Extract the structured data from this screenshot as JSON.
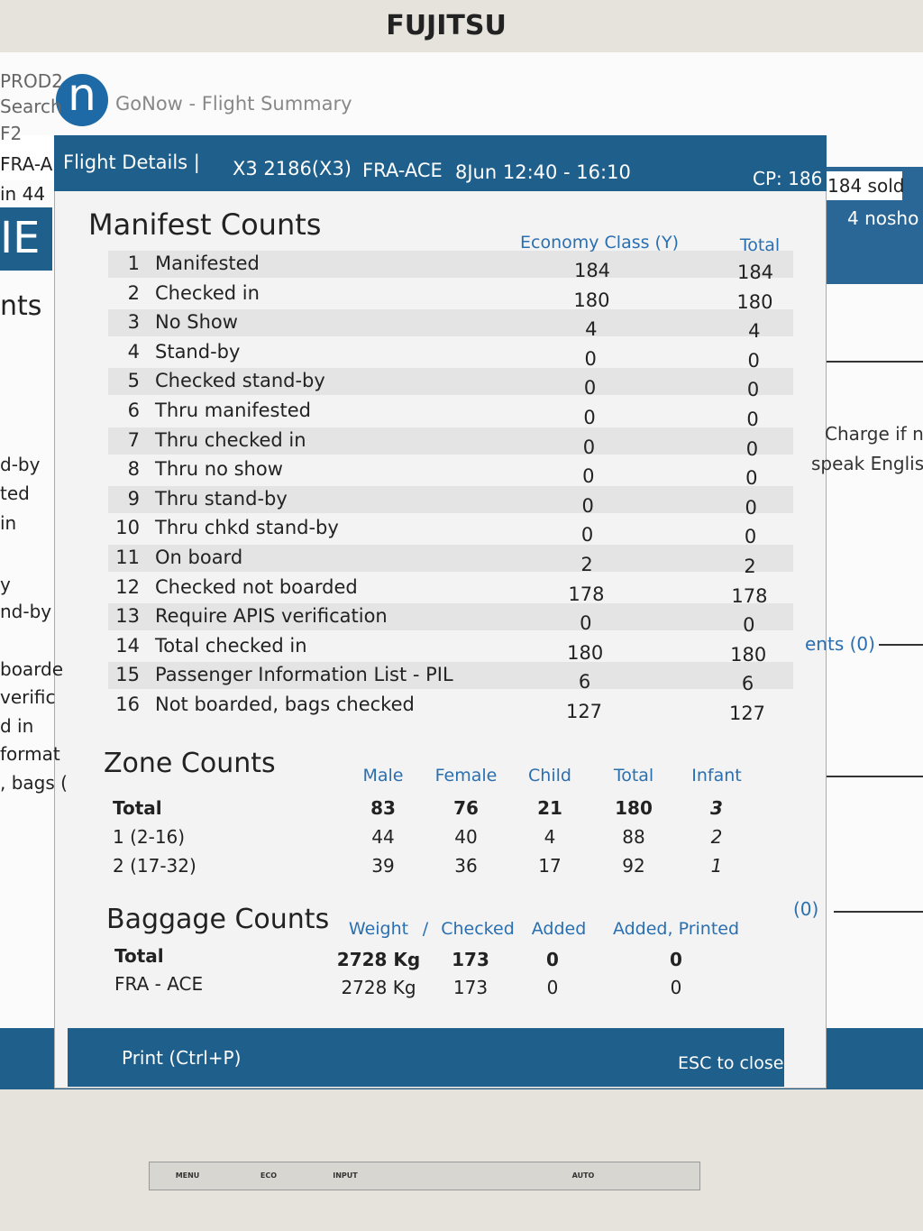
{
  "monitor": {
    "brand": "FUJITSU",
    "buttons": [
      "MENU",
      "ECO",
      "INPUT",
      "AUTO"
    ]
  },
  "background": {
    "left": [
      "PROD2",
      "Search",
      "F2",
      "FRA-A",
      "in 44",
      "IE",
      "nts",
      "d-by",
      "ted",
      "in",
      "y",
      "nd-by",
      "boarde",
      "verific",
      "d in",
      "format",
      ", bags ("
    ],
    "right": [
      "184 sold",
      "4 nosho",
      "Charge if n",
      "speak Englis",
      "ents (0)",
      "(0)"
    ]
  },
  "window": {
    "logo": "n",
    "title": "GoNow - Flight Summary"
  },
  "dialog": {
    "header": {
      "label": "Flight Details |",
      "flight": "X3 2186(X3)",
      "route": "FRA-ACE",
      "time": "8Jun 12:40 - 16:10",
      "cp": "CP: 186"
    },
    "manifest": {
      "title": "Manifest Counts",
      "columns": [
        "Economy Class (Y)",
        "Total"
      ],
      "rows": [
        [
          1,
          "Manifested",
          184,
          184
        ],
        [
          2,
          "Checked in",
          180,
          180
        ],
        [
          3,
          "No Show",
          4,
          4
        ],
        [
          4,
          "Stand-by",
          0,
          0
        ],
        [
          5,
          "Checked stand-by",
          0,
          0
        ],
        [
          6,
          "Thru manifested",
          0,
          0
        ],
        [
          7,
          "Thru checked in",
          0,
          0
        ],
        [
          8,
          "Thru no show",
          0,
          0
        ],
        [
          9,
          "Thru stand-by",
          0,
          0
        ],
        [
          10,
          "Thru chkd stand-by",
          0,
          0
        ],
        [
          11,
          "On board",
          2,
          2
        ],
        [
          12,
          "Checked not boarded",
          178,
          178
        ],
        [
          13,
          "Require APIS verification",
          0,
          0
        ],
        [
          14,
          "Total checked in",
          180,
          180
        ],
        [
          15,
          "Passenger Information List - PIL",
          6,
          6
        ],
        [
          16,
          "Not boarded, bags checked",
          127,
          127
        ]
      ]
    },
    "zones": {
      "title": "Zone Counts",
      "columns": [
        "Male",
        "Female",
        "Child",
        "Total",
        "Infant"
      ],
      "rows": [
        [
          "Total",
          83,
          76,
          21,
          180,
          3
        ],
        [
          "1 (2-16)",
          44,
          40,
          4,
          88,
          2
        ],
        [
          "2 (17-32)",
          39,
          36,
          17,
          92,
          1
        ]
      ]
    },
    "baggage": {
      "title": "Baggage Counts",
      "columns": [
        "Weight",
        "/",
        "Checked",
        "Added",
        "Added, Printed"
      ],
      "rows": [
        [
          "Total",
          "2728 Kg",
          173,
          0,
          0
        ],
        [
          "FRA - ACE",
          "2728 Kg",
          173,
          0,
          0
        ]
      ]
    },
    "footer": {
      "print": "Print (Ctrl+P)",
      "close": "ESC to close"
    }
  }
}
